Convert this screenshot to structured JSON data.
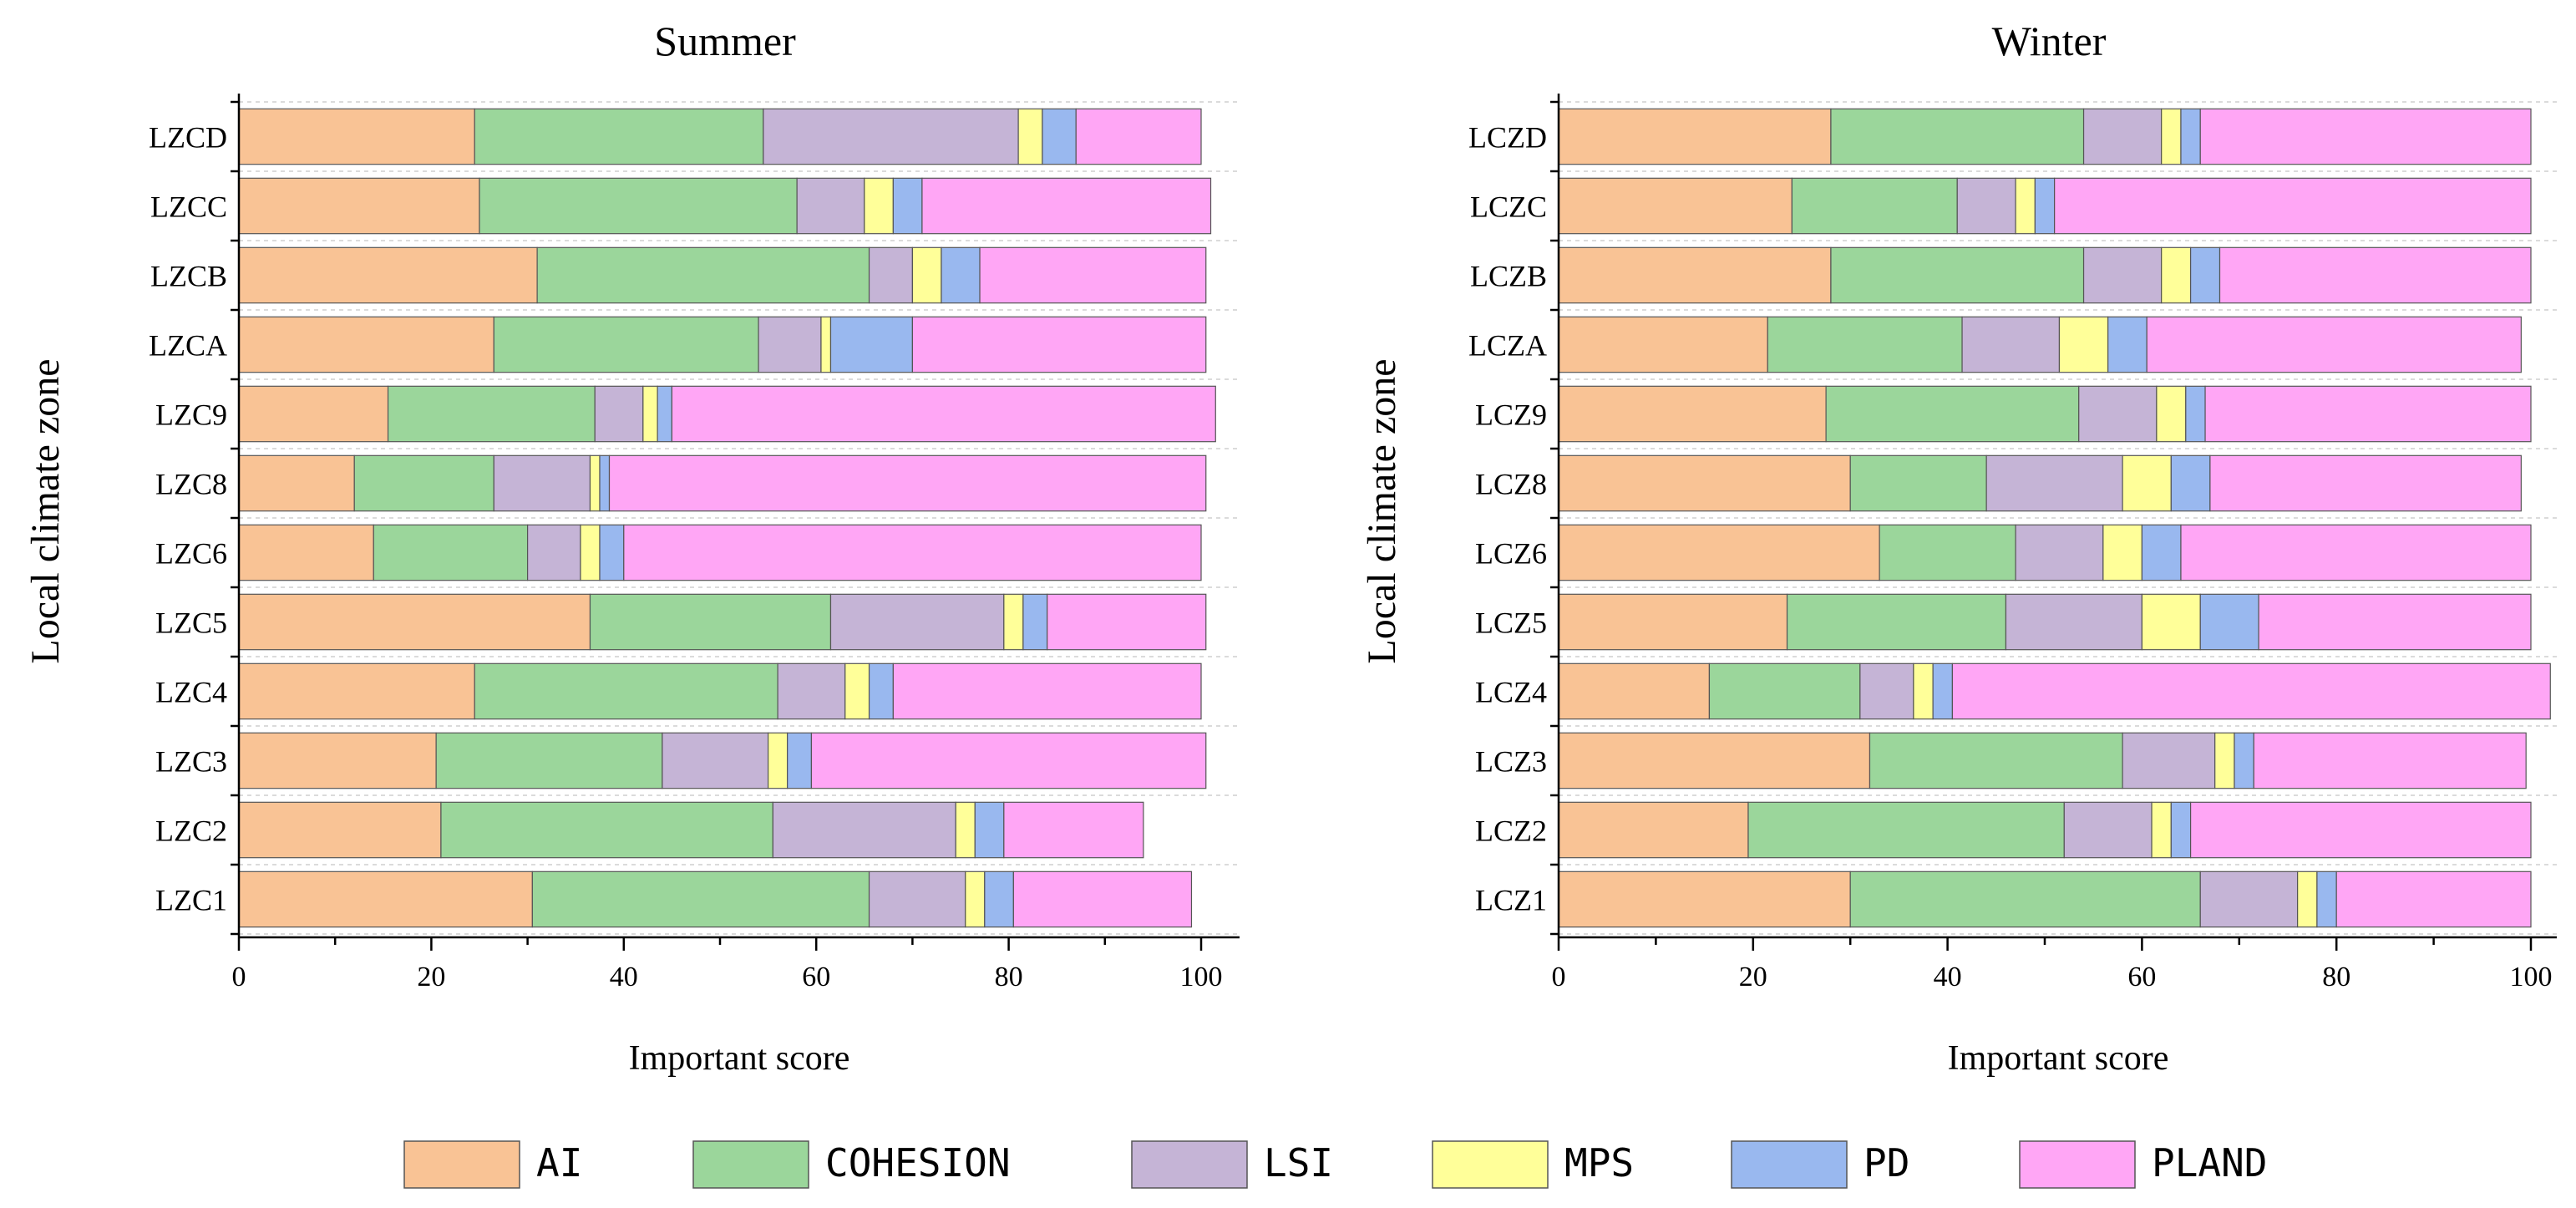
{
  "series_names": [
    "AI",
    "COHESION",
    "LSI",
    "MPS",
    "PD",
    "PLAND"
  ],
  "colors": {
    "AI": "#f9c395",
    "COHESION": "#9bd69b",
    "LSI": "#c5b4d6",
    "MPS": "#ffff99",
    "PD": "#99b8ef",
    "PLAND": "#ffa6f5"
  },
  "legend": {
    "labels": [
      "AI",
      "COHESION",
      "LSI",
      "MPS",
      "PD",
      "PLAND"
    ]
  },
  "chart_data": [
    {
      "type": "bar",
      "orientation": "horizontal",
      "stacked": true,
      "title": "Summer",
      "xlabel": "Important score",
      "ylabel": "Local climate zone",
      "xlim": [
        0,
        105
      ],
      "xticks": [
        0,
        20,
        40,
        60,
        80,
        100
      ],
      "categories": [
        "LZCD",
        "LZCC",
        "LZCB",
        "LZCA",
        "LZC9",
        "LZC8",
        "LZC6",
        "LZC5",
        "LZC4",
        "LZC3",
        "LZC2",
        "LZC1"
      ],
      "series": [
        {
          "name": "AI",
          "values": [
            24.5,
            25.0,
            31.0,
            26.5,
            15.5,
            12.0,
            14.0,
            36.5,
            24.5,
            20.5,
            21.0,
            30.5
          ]
        },
        {
          "name": "COHESION",
          "values": [
            30.0,
            33.0,
            34.5,
            27.5,
            21.5,
            14.5,
            16.0,
            25.0,
            31.5,
            23.5,
            34.5,
            35.0
          ]
        },
        {
          "name": "LSI",
          "values": [
            26.5,
            7.0,
            4.5,
            6.5,
            5.0,
            10.0,
            5.5,
            18.0,
            7.0,
            11.0,
            19.0,
            10.0
          ]
        },
        {
          "name": "MPS",
          "values": [
            2.5,
            3.0,
            3.0,
            1.0,
            1.5,
            1.0,
            2.0,
            2.0,
            2.5,
            2.0,
            2.0,
            2.0
          ]
        },
        {
          "name": "PD",
          "values": [
            3.5,
            3.0,
            4.0,
            8.5,
            1.5,
            1.0,
            2.5,
            2.5,
            2.5,
            2.5,
            3.0,
            3.0
          ]
        },
        {
          "name": "PLAND",
          "values": [
            13.0,
            30.0,
            23.5,
            30.5,
            56.5,
            62.0,
            60.0,
            16.5,
            32.0,
            41.0,
            14.5,
            18.5
          ]
        }
      ]
    },
    {
      "type": "bar",
      "orientation": "horizontal",
      "stacked": true,
      "title": "Winter",
      "xlabel": "Important score",
      "ylabel": "Local climate zone",
      "xlim": [
        0,
        102
      ],
      "xticks": [
        0,
        20,
        40,
        60,
        80,
        100
      ],
      "categories": [
        "LCZD",
        "LCZC",
        "LCZB",
        "LCZA",
        "LCZ9",
        "LCZ8",
        "LCZ6",
        "LCZ5",
        "LCZ4",
        "LCZ3",
        "LCZ2",
        "LCZ1"
      ],
      "series": [
        {
          "name": "AI",
          "values": [
            28.0,
            24.0,
            28.0,
            21.5,
            27.5,
            30.0,
            33.0,
            23.5,
            15.5,
            32.0,
            19.5,
            30.0
          ]
        },
        {
          "name": "COHESION",
          "values": [
            26.0,
            17.0,
            26.0,
            20.0,
            26.0,
            14.0,
            14.0,
            22.5,
            15.5,
            26.0,
            32.5,
            36.0
          ]
        },
        {
          "name": "LSI",
          "values": [
            8.0,
            6.0,
            8.0,
            10.0,
            8.0,
            14.0,
            9.0,
            14.0,
            5.5,
            9.5,
            9.0,
            10.0
          ]
        },
        {
          "name": "MPS",
          "values": [
            2.0,
            2.0,
            3.0,
            5.0,
            3.0,
            5.0,
            4.0,
            6.0,
            2.0,
            2.0,
            2.0,
            2.0
          ]
        },
        {
          "name": "PD",
          "values": [
            2.0,
            2.0,
            3.0,
            4.0,
            2.0,
            4.0,
            4.0,
            6.0,
            2.0,
            2.0,
            2.0,
            2.0
          ]
        },
        {
          "name": "PLAND",
          "values": [
            34.0,
            49.0,
            32.0,
            38.5,
            33.5,
            32.0,
            36.0,
            28.0,
            61.5,
            28.0,
            35.0,
            20.0
          ]
        }
      ]
    }
  ]
}
